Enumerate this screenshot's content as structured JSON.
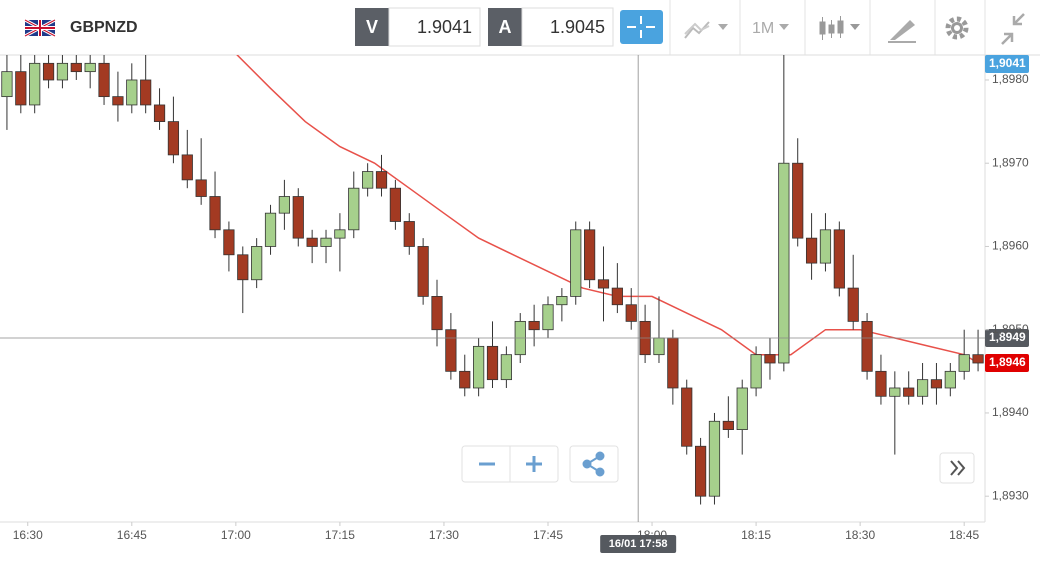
{
  "toolbar": {
    "symbol": "GBPNZD",
    "bid_label": "V",
    "bid": "1.9041",
    "ask_label": "A",
    "ask": "1.9045",
    "timeframe": "1M"
  },
  "chart_data": {
    "type": "candlestick",
    "x": [
      "16:27",
      "16:29",
      "16:31",
      "16:33",
      "16:35",
      "16:37",
      "16:39",
      "16:41",
      "16:43",
      "16:45",
      "16:47",
      "16:49",
      "16:51",
      "16:53",
      "16:55",
      "16:57",
      "16:59",
      "17:01",
      "17:03",
      "17:05",
      "17:07",
      "17:09",
      "17:11",
      "17:13",
      "17:15",
      "17:17",
      "17:19",
      "17:21",
      "17:23",
      "17:25",
      "17:27",
      "17:29",
      "17:31",
      "17:33",
      "17:35",
      "17:37",
      "17:39",
      "17:41",
      "17:43",
      "17:45",
      "17:47",
      "17:49",
      "17:51",
      "17:53",
      "17:55",
      "17:57",
      "17:59",
      "18:01",
      "18:03",
      "18:05",
      "18:07",
      "18:09",
      "18:11",
      "18:13",
      "18:15",
      "18:17",
      "18:19",
      "18:21",
      "18:23",
      "18:25",
      "18:27",
      "18:29",
      "18:31",
      "18:33",
      "18:35",
      "18:37",
      "18:39",
      "18:41",
      "18:43",
      "18:45",
      "18:47"
    ],
    "open": [
      1.8978,
      1.8981,
      1.8977,
      1.8982,
      1.898,
      1.8982,
      1.8981,
      1.8982,
      1.8978,
      1.8977,
      1.898,
      1.8977,
      1.8975,
      1.8971,
      1.8968,
      1.8966,
      1.8962,
      1.8959,
      1.8956,
      1.896,
      1.8964,
      1.8966,
      1.8961,
      1.896,
      1.8961,
      1.8962,
      1.8967,
      1.8969,
      1.8967,
      1.8963,
      1.896,
      1.8954,
      1.895,
      1.8945,
      1.8943,
      1.8948,
      1.8944,
      1.8947,
      1.8951,
      1.895,
      1.8953,
      1.8954,
      1.8962,
      1.8956,
      1.8955,
      1.8953,
      1.8951,
      1.8947,
      1.8949,
      1.8943,
      1.8936,
      1.893,
      1.8939,
      1.8938,
      1.8943,
      1.8947,
      1.8946,
      1.897,
      1.8961,
      1.8958,
      1.8962,
      1.8955,
      1.8951,
      1.8945,
      1.8942,
      1.8943,
      1.8942,
      1.8944,
      1.8943,
      1.8945,
      1.8947
    ],
    "high": [
      1.8983,
      1.8983,
      1.8983,
      1.8983,
      1.8983,
      1.8983,
      1.8983,
      1.8983,
      1.8981,
      1.8982,
      1.8983,
      1.8979,
      1.8978,
      1.8974,
      1.8973,
      1.8969,
      1.8963,
      1.896,
      1.8961,
      1.8965,
      1.8968,
      1.8967,
      1.8962,
      1.8962,
      1.8964,
      1.8969,
      1.897,
      1.8971,
      1.8968,
      1.8964,
      1.8961,
      1.8956,
      1.8952,
      1.8947,
      1.8949,
      1.8951,
      1.8948,
      1.8952,
      1.8953,
      1.8954,
      1.8955,
      1.8963,
      1.8963,
      1.896,
      1.8958,
      1.8955,
      1.8953,
      1.8954,
      1.895,
      1.8944,
      1.8937,
      1.894,
      1.8942,
      1.8944,
      1.8948,
      1.8949,
      1.8985,
      1.8973,
      1.8964,
      1.8964,
      1.8963,
      1.8959,
      1.8952,
      1.8947,
      1.8945,
      1.8945,
      1.8946,
      1.8946,
      1.8946,
      1.895,
      1.895
    ],
    "low": [
      1.8974,
      1.8976,
      1.8976,
      1.8979,
      1.8979,
      1.898,
      1.8979,
      1.8977,
      1.8975,
      1.8976,
      1.8976,
      1.8974,
      1.897,
      1.8967,
      1.8965,
      1.8961,
      1.8957,
      1.8952,
      1.8955,
      1.8959,
      1.8962,
      1.896,
      1.8958,
      1.8958,
      1.8957,
      1.8961,
      1.8966,
      1.8966,
      1.8962,
      1.8959,
      1.8953,
      1.8948,
      1.8944,
      1.8942,
      1.8942,
      1.8943,
      1.8943,
      1.8946,
      1.8948,
      1.8949,
      1.8951,
      1.8953,
      1.8955,
      1.8951,
      1.8952,
      1.895,
      1.8946,
      1.8946,
      1.8941,
      1.8935,
      1.8929,
      1.8929,
      1.8937,
      1.8935,
      1.8942,
      1.8944,
      1.8945,
      1.896,
      1.8956,
      1.8957,
      1.8954,
      1.895,
      1.8944,
      1.8941,
      1.8935,
      1.8941,
      1.8941,
      1.8941,
      1.8942,
      1.8944,
      1.8945
    ],
    "close": [
      1.8981,
      1.8977,
      1.8982,
      1.898,
      1.8982,
      1.8981,
      1.8982,
      1.8978,
      1.8977,
      1.898,
      1.8977,
      1.8975,
      1.8971,
      1.8968,
      1.8966,
      1.8962,
      1.8959,
      1.8956,
      1.896,
      1.8964,
      1.8966,
      1.8961,
      1.896,
      1.8961,
      1.8962,
      1.8967,
      1.8969,
      1.8967,
      1.8963,
      1.896,
      1.8954,
      1.895,
      1.8945,
      1.8943,
      1.8948,
      1.8944,
      1.8947,
      1.8951,
      1.895,
      1.8953,
      1.8954,
      1.8962,
      1.8956,
      1.8955,
      1.8953,
      1.8951,
      1.8947,
      1.8949,
      1.8943,
      1.8936,
      1.893,
      1.8939,
      1.8938,
      1.8943,
      1.8947,
      1.8946,
      1.897,
      1.8961,
      1.8958,
      1.8962,
      1.8955,
      1.8951,
      1.8945,
      1.8942,
      1.8943,
      1.8942,
      1.8944,
      1.8943,
      1.8945,
      1.8947,
      1.8946
    ],
    "up_color": "#a6d08c",
    "down_color": "#a33a22",
    "ma": {
      "color": "#e8514a",
      "x": [
        "16:59",
        "17:05",
        "17:10",
        "17:15",
        "17:20",
        "17:25",
        "17:30",
        "17:35",
        "17:40",
        "17:45",
        "17:50",
        "17:55",
        "18:00",
        "18:05",
        "18:10",
        "18:15",
        "18:20",
        "18:25",
        "18:30",
        "18:35",
        "18:40",
        "18:45",
        "18:47"
      ],
      "values": [
        1.8984,
        1.8979,
        1.8975,
        1.8972,
        1.897,
        1.8967,
        1.8964,
        1.8961,
        1.8959,
        1.8957,
        1.8955,
        1.8954,
        1.8954,
        1.8952,
        1.895,
        1.8947,
        1.8947,
        1.895,
        1.895,
        1.8949,
        1.8948,
        1.8947,
        1.8946
      ]
    },
    "xlim": [
      "16:26",
      "18:48"
    ],
    "xticks": [
      "16:30",
      "16:45",
      "17:00",
      "17:15",
      "17:30",
      "17:45",
      "18:00",
      "18:15",
      "18:30",
      "18:45"
    ],
    "ylim": [
      1.89269,
      1.8983
    ],
    "yticks": [
      {
        "value": 1.893,
        "label": "1,8930"
      },
      {
        "value": 1.894,
        "label": "1,8940"
      },
      {
        "value": 1.895,
        "label": "1,8950"
      },
      {
        "value": 1.896,
        "label": "1,8960"
      },
      {
        "value": 1.897,
        "label": "1,8970"
      },
      {
        "value": 1.898,
        "label": "1,8980"
      }
    ],
    "price_labels": [
      {
        "value": 1.9041,
        "label": "1,9041",
        "color": "#4aa3df"
      },
      {
        "value": 1.8946,
        "label": "1,8946",
        "color": "#e00000"
      }
    ],
    "crosshair": {
      "price": {
        "value": 1.8949,
        "label": "1,8949"
      },
      "time": "16/01 17:58"
    }
  }
}
